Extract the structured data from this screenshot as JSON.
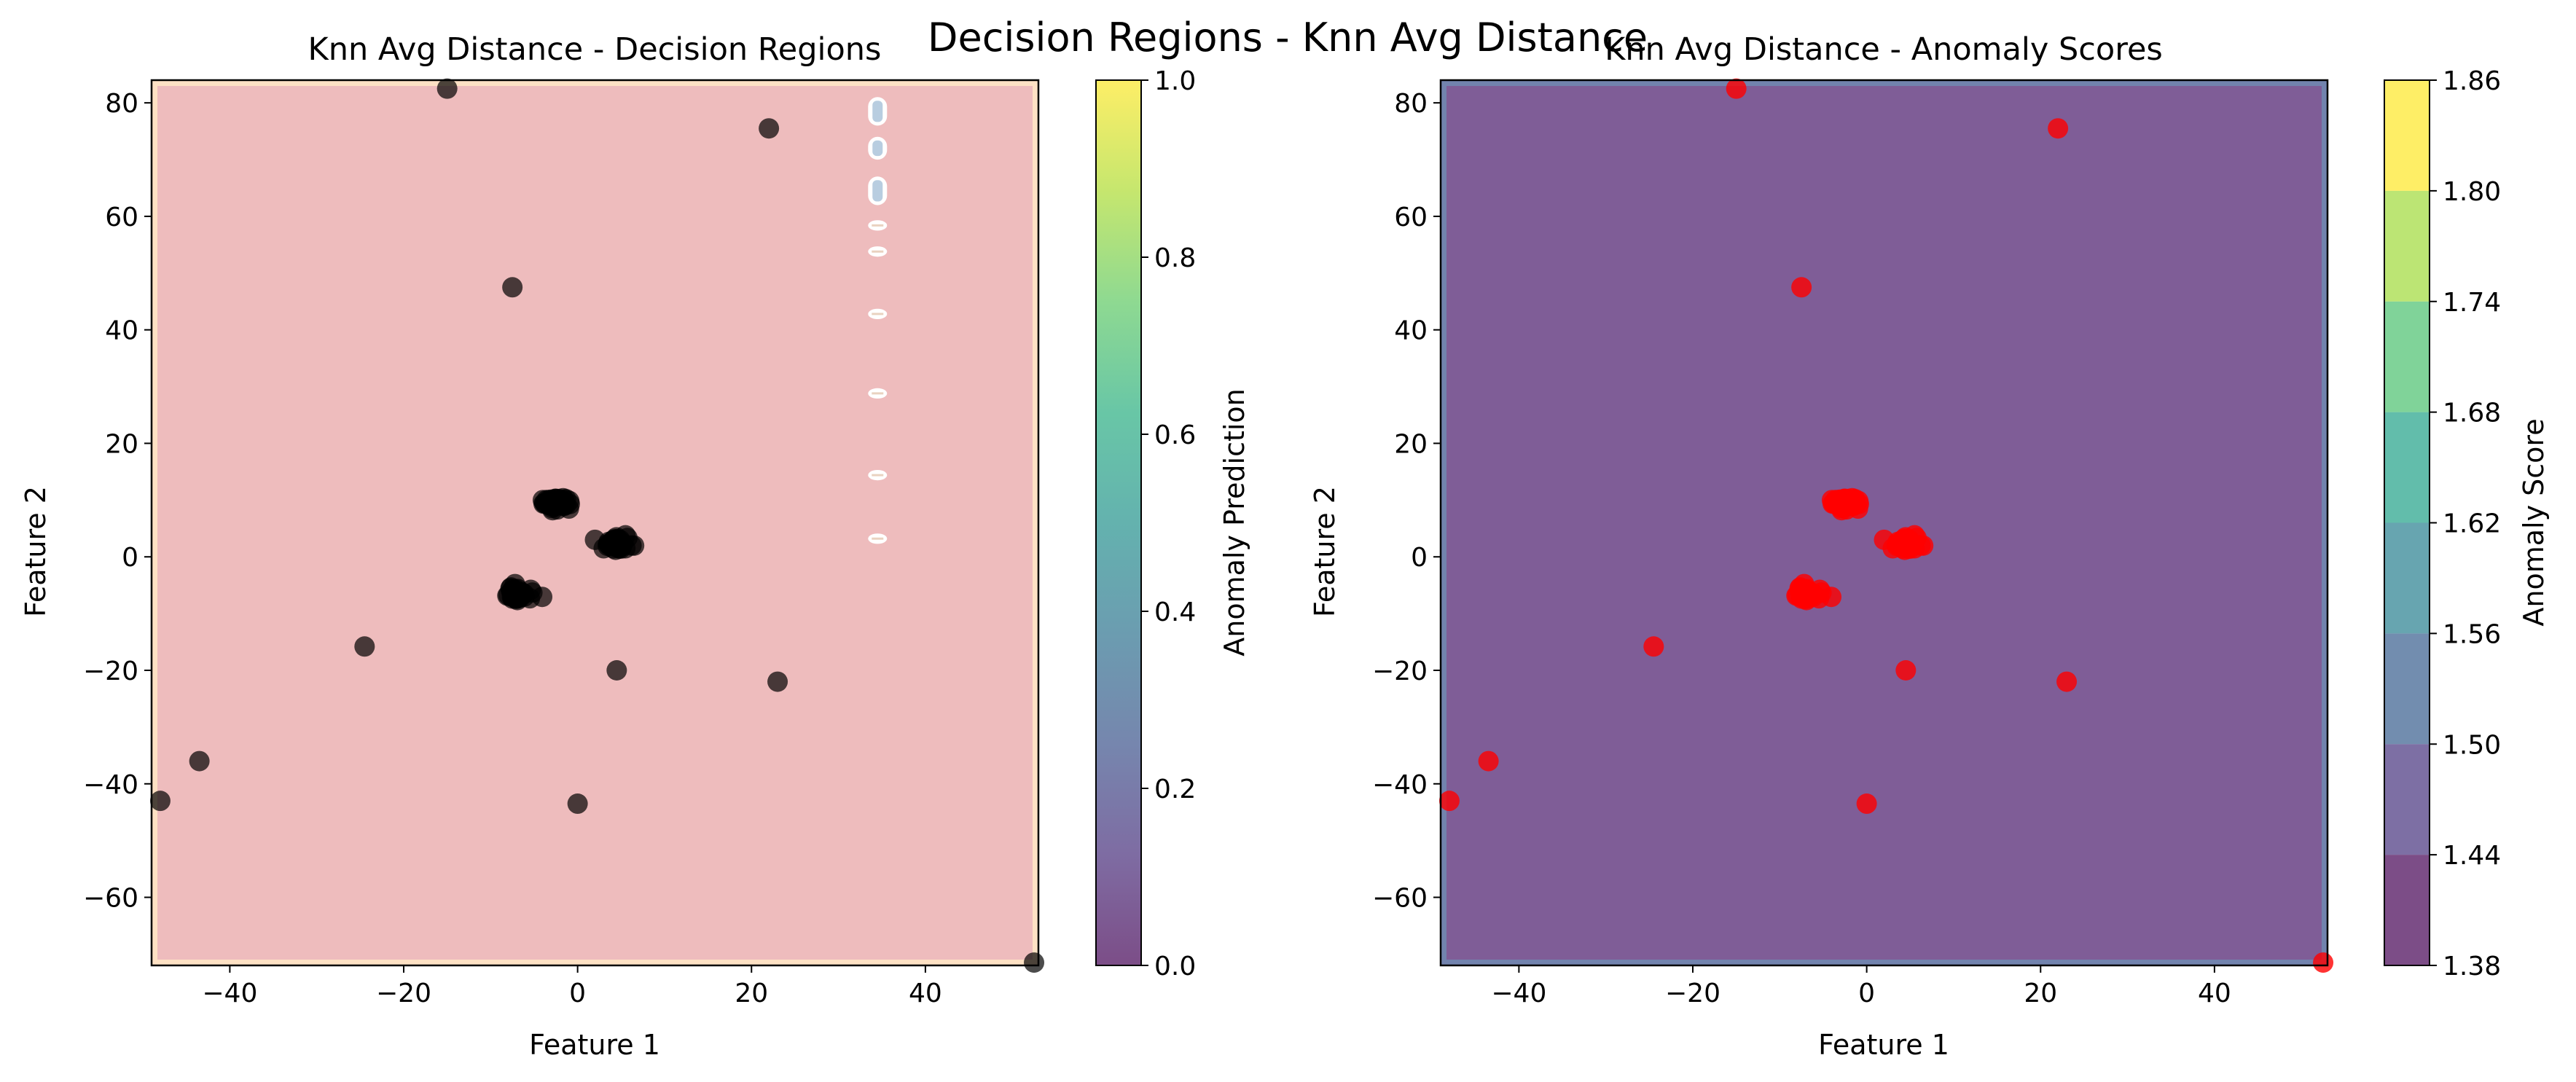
{
  "figure": {
    "suptitle": "Decision Regions - Knn Avg Distance"
  },
  "chart_data": [
    {
      "type": "scatter",
      "title": "Knn Avg Distance - Decision Regions",
      "xlabel": "Feature 1",
      "ylabel": "Feature 2",
      "xlim": [
        -49,
        53
      ],
      "ylim": [
        -72,
        84
      ],
      "x_ticks": [
        -40,
        -20,
        0,
        20,
        40
      ],
      "y_ticks": [
        -60,
        -40,
        -20,
        0,
        20,
        40,
        60,
        80
      ],
      "x_tick_labels": [
        "−40",
        "−20",
        "0",
        "20",
        "40"
      ],
      "y_tick_labels": [
        "−60",
        "−40",
        "−20",
        "0",
        "20",
        "40",
        "60",
        "80"
      ],
      "background": "filled decision-region contour, predicted normal (0) over nearly the whole plane",
      "region_color": "#eebcbd",
      "border_color": "#fde1c4",
      "anomaly_column": {
        "x": 34.5,
        "segments": [
          [
            76.5,
            80.5
          ],
          [
            70.5,
            73.5
          ],
          [
            62.5,
            66.5
          ],
          [
            58,
            58.8
          ],
          [
            53.4,
            54.2
          ],
          [
            42.4,
            43.2
          ],
          [
            28.4,
            29.2
          ],
          [
            14,
            14.8
          ],
          [
            2.8,
            3.6
          ]
        ],
        "outline_color": "#ffffff",
        "fill_color": "#b8cde0"
      },
      "marker_color": "#000000",
      "marker_opacity": 0.7,
      "points": {
        "outliers": [
          [
            -15,
            82.5
          ],
          [
            22,
            75.5
          ],
          [
            -7.5,
            47.5
          ],
          [
            -24.5,
            -15.8
          ],
          [
            4.5,
            -20
          ],
          [
            23,
            -22
          ],
          [
            -43.5,
            -36
          ],
          [
            -48,
            -43
          ],
          [
            0,
            -43.5
          ],
          [
            52.5,
            -71.5
          ]
        ],
        "clusters": [
          {
            "name": "",
            "center": [
              -2.5,
              9.5
            ],
            "spread": [
              1.5,
              1.2
            ],
            "count": 40
          },
          {
            "name": "",
            "center": [
              4.6,
              2.2
            ],
            "spread": [
              1.3,
              1.1
            ],
            "count": 40
          },
          {
            "name": "",
            "center": [
              -7,
              -6.5
            ],
            "spread": [
              1.3,
              1.0
            ],
            "count": 40
          }
        ],
        "cluster_fringe": [
          [
            2,
            3
          ],
          [
            6.2,
            2
          ],
          [
            3,
            1.5
          ],
          [
            5.5,
            3.8
          ],
          [
            -5.2,
            -6.3
          ],
          [
            -7.2,
            -4.8
          ],
          [
            -4,
            10
          ],
          [
            -1,
            8.5
          ]
        ]
      },
      "colorbar": {
        "label": "Anomaly Prediction",
        "colormap": "viridis",
        "alpha": 0.7,
        "vmin": 0.0,
        "vmax": 1.0,
        "ticks": [
          0.0,
          0.2,
          0.4,
          0.6,
          0.8,
          1.0
        ],
        "tick_labels": [
          "0.0",
          "0.2",
          "0.4",
          "0.6",
          "0.8",
          "1.0"
        ]
      }
    },
    {
      "type": "scatter",
      "title": "Knn Avg Distance - Anomaly Scores",
      "xlabel": "Feature 1",
      "ylabel": "Feature 2",
      "xlim": [
        -49,
        53
      ],
      "ylim": [
        -72,
        84
      ],
      "x_ticks": [
        -40,
        -20,
        0,
        20,
        40
      ],
      "y_ticks": [
        -60,
        -40,
        -20,
        0,
        20,
        40,
        60,
        80
      ],
      "x_tick_labels": [
        "−40",
        "−20",
        "0",
        "20",
        "40"
      ],
      "y_tick_labels": [
        "−60",
        "−40",
        "−20",
        "0",
        "20",
        "40",
        "60",
        "80"
      ],
      "background": "filled anomaly-score contour, lowest level (1.38–1.44) over nearly the whole plane",
      "region_color": "#7f5d97",
      "border_color": "#7283ae",
      "marker_color": "#ff0000",
      "marker_opacity": 0.8,
      "points": {
        "outliers": [
          [
            -15,
            82.5
          ],
          [
            22,
            75.5
          ],
          [
            -7.5,
            47.5
          ],
          [
            -24.5,
            -15.8
          ],
          [
            4.5,
            -20
          ],
          [
            23,
            -22
          ],
          [
            -43.5,
            -36
          ],
          [
            -48,
            -43
          ],
          [
            0,
            -43.5
          ],
          [
            52.5,
            -71.5
          ]
        ],
        "clusters": [
          {
            "name": "",
            "center": [
              -2.5,
              9.5
            ],
            "spread": [
              1.5,
              1.2
            ],
            "count": 40
          },
          {
            "name": "",
            "center": [
              4.6,
              2.2
            ],
            "spread": [
              1.3,
              1.1
            ],
            "count": 40
          },
          {
            "name": "",
            "center": [
              -7,
              -6.5
            ],
            "spread": [
              1.3,
              1.0
            ],
            "count": 40
          }
        ],
        "cluster_fringe": [
          [
            2,
            3
          ],
          [
            6.2,
            2
          ],
          [
            3,
            1.5
          ],
          [
            5.5,
            3.8
          ],
          [
            -5.2,
            -6.3
          ],
          [
            -7.2,
            -4.8
          ],
          [
            -4,
            10
          ],
          [
            -1,
            8.5
          ]
        ]
      },
      "colorbar": {
        "label": "Anomaly Score",
        "colormap": "viridis",
        "alpha": 0.7,
        "vmin": 1.38,
        "vmax": 1.86,
        "levels": [
          1.38,
          1.44,
          1.5,
          1.56,
          1.62,
          1.68,
          1.74,
          1.8,
          1.86
        ],
        "ticks": [
          1.38,
          1.44,
          1.5,
          1.56,
          1.62,
          1.68,
          1.74,
          1.8,
          1.86
        ],
        "tick_labels": [
          "1.38",
          "1.44",
          "1.50",
          "1.56",
          "1.62",
          "1.68",
          "1.74",
          "1.80",
          "1.86"
        ]
      }
    }
  ]
}
